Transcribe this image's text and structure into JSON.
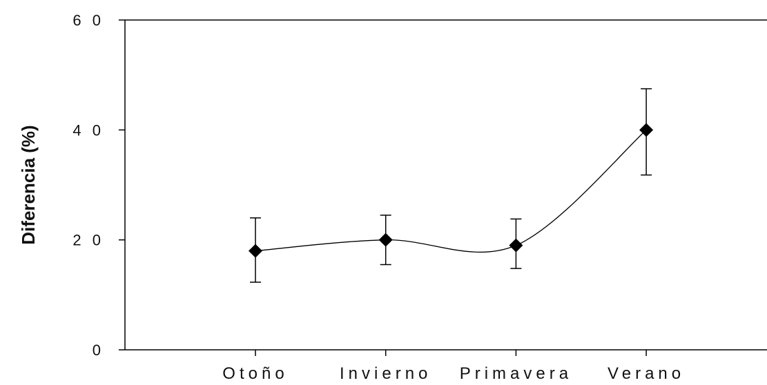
{
  "chart_data": {
    "type": "line",
    "title": "",
    "xlabel": "",
    "ylabel": "Diferencia (%)",
    "categories": [
      "Otoño",
      "Invierno",
      "Primavera",
      "Verano"
    ],
    "series": [
      {
        "values": [
          18,
          20,
          19,
          40
        ],
        "error_low": [
          12.3,
          15.5,
          14.8,
          31.8
        ],
        "error_high": [
          24,
          24.5,
          23.8,
          47.5
        ]
      }
    ],
    "ylim": [
      0,
      60
    ],
    "yticks": [
      0,
      20,
      40,
      60
    ],
    "ytick_labels": [
      "0",
      "2 0",
      "4 0",
      "6 0"
    ],
    "grid": false,
    "legend": "none",
    "line_style": "smooth",
    "marker": "diamond",
    "colors": {
      "line": "#000000",
      "marker": "#000000",
      "axis": "#000000"
    }
  }
}
